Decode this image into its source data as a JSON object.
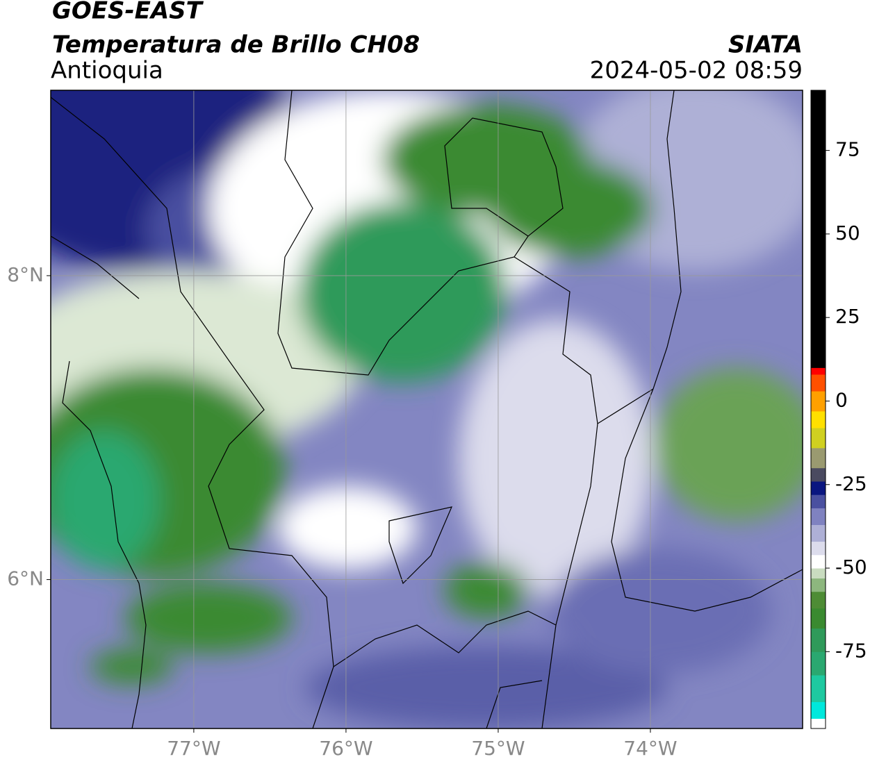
{
  "header": {
    "title": "GOES-EAST",
    "subtitle": "Temperatura de Brillo CH08",
    "region": "Antioquia",
    "source": "SIATA",
    "datetime": "2024-05-02 08:59"
  },
  "map": {
    "xlim": [
      -77.94,
      -73.0
    ],
    "ylim": [
      5.02,
      9.22
    ],
    "xticks": [
      {
        "value": -77,
        "label": "77°W"
      },
      {
        "value": -76,
        "label": "76°W"
      },
      {
        "value": -75,
        "label": "75°W"
      },
      {
        "value": -74,
        "label": "74°W"
      }
    ],
    "yticks": [
      {
        "value": 8,
        "label": "8°N"
      },
      {
        "value": 6,
        "label": "6°N"
      }
    ],
    "grid": true
  },
  "colorbar": {
    "lim": [
      -98,
      93
    ],
    "ticks": [
      75,
      50,
      25,
      0,
      -25,
      -50,
      -75
    ],
    "stops": [
      {
        "value": -98,
        "color": "#ffffff"
      },
      {
        "value": -95,
        "color": "#00e8dc"
      },
      {
        "value": -90,
        "color": "#1ec9a0"
      },
      {
        "value": -82,
        "color": "#2aa870"
      },
      {
        "value": -75,
        "color": "#2f9a5a"
      },
      {
        "value": -68,
        "color": "#3a8a30"
      },
      {
        "value": -62,
        "color": "#4e8c35"
      },
      {
        "value": -57,
        "color": "#8db77e"
      },
      {
        "value": -53,
        "color": "#c9dcc0"
      },
      {
        "value": -50,
        "color": "#ffffff"
      },
      {
        "value": -46,
        "color": "#dcdcec"
      },
      {
        "value": -42,
        "color": "#aeb0d6"
      },
      {
        "value": -37,
        "color": "#7f82c0"
      },
      {
        "value": -32,
        "color": "#4a50a0"
      },
      {
        "value": -28,
        "color": "#0a1680"
      },
      {
        "value": -24,
        "color": "#4a4a60"
      },
      {
        "value": -20,
        "color": "#9a9a70"
      },
      {
        "value": -14,
        "color": "#d0d020"
      },
      {
        "value": -8,
        "color": "#ffe000"
      },
      {
        "value": -3,
        "color": "#ffa000"
      },
      {
        "value": 3,
        "color": "#ff5000"
      },
      {
        "value": 8,
        "color": "#ff0000"
      },
      {
        "value": 10,
        "color": "#000000"
      }
    ]
  }
}
